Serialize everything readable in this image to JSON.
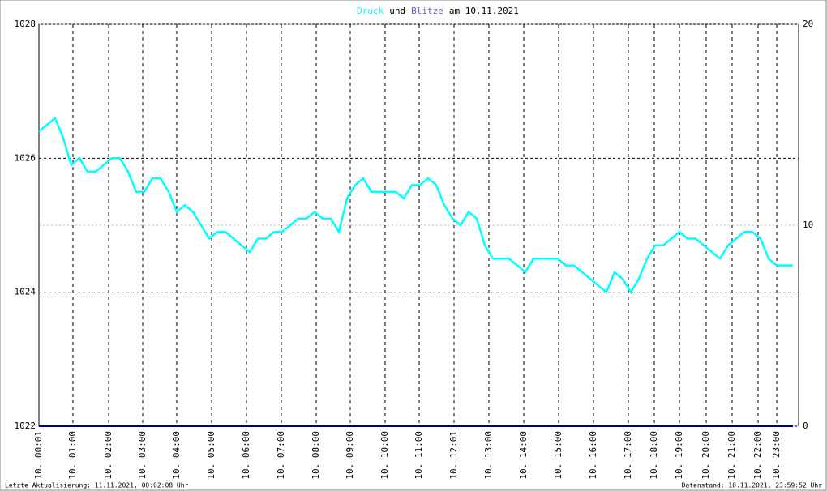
{
  "chart_data": {
    "type": "line",
    "title_join": "und",
    "title_suffix": "am 10.11.2021",
    "footer_left": "Letzte Aktualisierung: 11.11.2021, 00:02:08 Uhr",
    "footer_right": "Datenstand: 10.11.2021, 23:59:52 Uhr",
    "x": [
      0,
      1,
      2,
      3,
      4,
      5,
      6,
      7,
      8,
      9,
      10,
      11,
      12,
      13,
      14,
      15,
      16,
      17,
      18,
      19,
      20,
      21,
      22,
      23,
      24,
      25,
      26,
      27,
      28,
      29,
      30,
      31,
      32,
      33,
      34,
      35,
      36,
      37,
      38,
      39,
      40,
      41,
      42,
      43,
      44,
      45,
      46,
      47,
      48,
      49,
      50,
      51,
      52,
      53,
      54,
      55,
      56,
      57,
      58,
      59,
      60,
      61,
      62,
      63,
      64,
      65,
      66,
      67,
      68,
      69,
      70,
      71,
      72,
      73,
      74,
      75,
      76,
      77,
      78,
      79,
      80,
      81,
      82,
      83,
      84,
      85,
      86,
      87,
      88,
      89,
      90,
      91,
      92,
      93
    ],
    "series": [
      {
        "name": "Druck",
        "color": "#00ffff",
        "values": [
          1026.4,
          1026.5,
          1026.6,
          1026.3,
          1025.9,
          1026.0,
          1025.8,
          1025.8,
          1025.9,
          1026.0,
          1026.0,
          1025.8,
          1025.5,
          1025.5,
          1025.7,
          1025.7,
          1025.5,
          1025.2,
          1025.3,
          1025.2,
          1025.0,
          1024.8,
          1024.9,
          1024.9,
          1024.8,
          1024.7,
          1024.6,
          1024.8,
          1024.8,
          1024.9,
          1024.9,
          1025.0,
          1025.1,
          1025.1,
          1025.2,
          1025.1,
          1025.1,
          1024.9,
          1025.4,
          1025.6,
          1025.7,
          1025.5,
          1025.5,
          1025.5,
          1025.5,
          1025.4,
          1025.6,
          1025.6,
          1025.7,
          1025.6,
          1025.3,
          1025.1,
          1025.0,
          1025.2,
          1025.1,
          1024.7,
          1024.5,
          1024.5,
          1024.5,
          1024.4,
          1024.3,
          1024.5,
          1024.5,
          1024.5,
          1024.5,
          1024.4,
          1024.4,
          1024.3,
          1024.2,
          1024.1,
          1024.0,
          1024.3,
          1024.2,
          1024.0,
          1024.2,
          1024.5,
          1024.7,
          1024.7,
          1024.8,
          1024.9,
          1024.8,
          1024.8,
          1024.7,
          1024.6,
          1024.5,
          1024.7,
          1024.8,
          1024.9,
          1024.9,
          1024.8,
          1024.5,
          1024.4,
          1024.4,
          1024.4
        ]
      },
      {
        "name": "Blitze",
        "color": "#6a5acd",
        "axis": "y2",
        "line_color": "#000080",
        "values": [
          0,
          0,
          0,
          0,
          0,
          0,
          0,
          0,
          0,
          0,
          0,
          0,
          0,
          0,
          0,
          0,
          0,
          0,
          0,
          0,
          0,
          0,
          0,
          0,
          0,
          0,
          0,
          0,
          0,
          0,
          0,
          0,
          0,
          0,
          0,
          0,
          0,
          0,
          0,
          0,
          0,
          0,
          0,
          0,
          0,
          0,
          0,
          0,
          0,
          0,
          0,
          0,
          0,
          0,
          0,
          0,
          0,
          0,
          0,
          0,
          0,
          0,
          0,
          0,
          0,
          0,
          0,
          0,
          0,
          0,
          0,
          0,
          0,
          0,
          0,
          0,
          0,
          0,
          0,
          0,
          0,
          0,
          0,
          0,
          0,
          0,
          0,
          0,
          0,
          0,
          0,
          0,
          0,
          0
        ]
      }
    ],
    "xlim": [
      0,
      93.7
    ],
    "xticks": [
      {
        "value": 0,
        "label": "10. 00:01"
      },
      {
        "value": 4.2,
        "label": "10. 01:00"
      },
      {
        "value": 8.6,
        "label": "10. 02:00"
      },
      {
        "value": 12.8,
        "label": "10. 03:00"
      },
      {
        "value": 17,
        "label": "10. 04:00"
      },
      {
        "value": 21.3,
        "label": "10. 05:00"
      },
      {
        "value": 25.6,
        "label": "10. 06:00"
      },
      {
        "value": 29.9,
        "label": "10. 07:00"
      },
      {
        "value": 34.2,
        "label": "10. 08:00"
      },
      {
        "value": 38.4,
        "label": "10. 09:00"
      },
      {
        "value": 42.7,
        "label": "10. 10:00"
      },
      {
        "value": 46.9,
        "label": "10. 11:00"
      },
      {
        "value": 51.2,
        "label": "10. 12:01"
      },
      {
        "value": 55.5,
        "label": "10. 13:00"
      },
      {
        "value": 59.8,
        "label": "10. 14:00"
      },
      {
        "value": 64.1,
        "label": "10. 15:00"
      },
      {
        "value": 68.4,
        "label": "10. 16:00"
      },
      {
        "value": 72.7,
        "label": "10. 17:00"
      },
      {
        "value": 75.9,
        "label": "10. 18:00"
      },
      {
        "value": 79,
        "label": "10. 19:00"
      },
      {
        "value": 82.3,
        "label": "10. 20:00"
      },
      {
        "value": 85.5,
        "label": "10. 21:00"
      },
      {
        "value": 88.7,
        "label": "10. 22:00"
      },
      {
        "value": 91,
        "label": "10. 23:00"
      }
    ],
    "ylim": [
      1022,
      1028
    ],
    "yticks": [
      1022,
      1024,
      1026,
      1028
    ],
    "y2lim": [
      0,
      20
    ],
    "y2ticks": [
      0,
      10,
      20
    ],
    "grid": true
  }
}
